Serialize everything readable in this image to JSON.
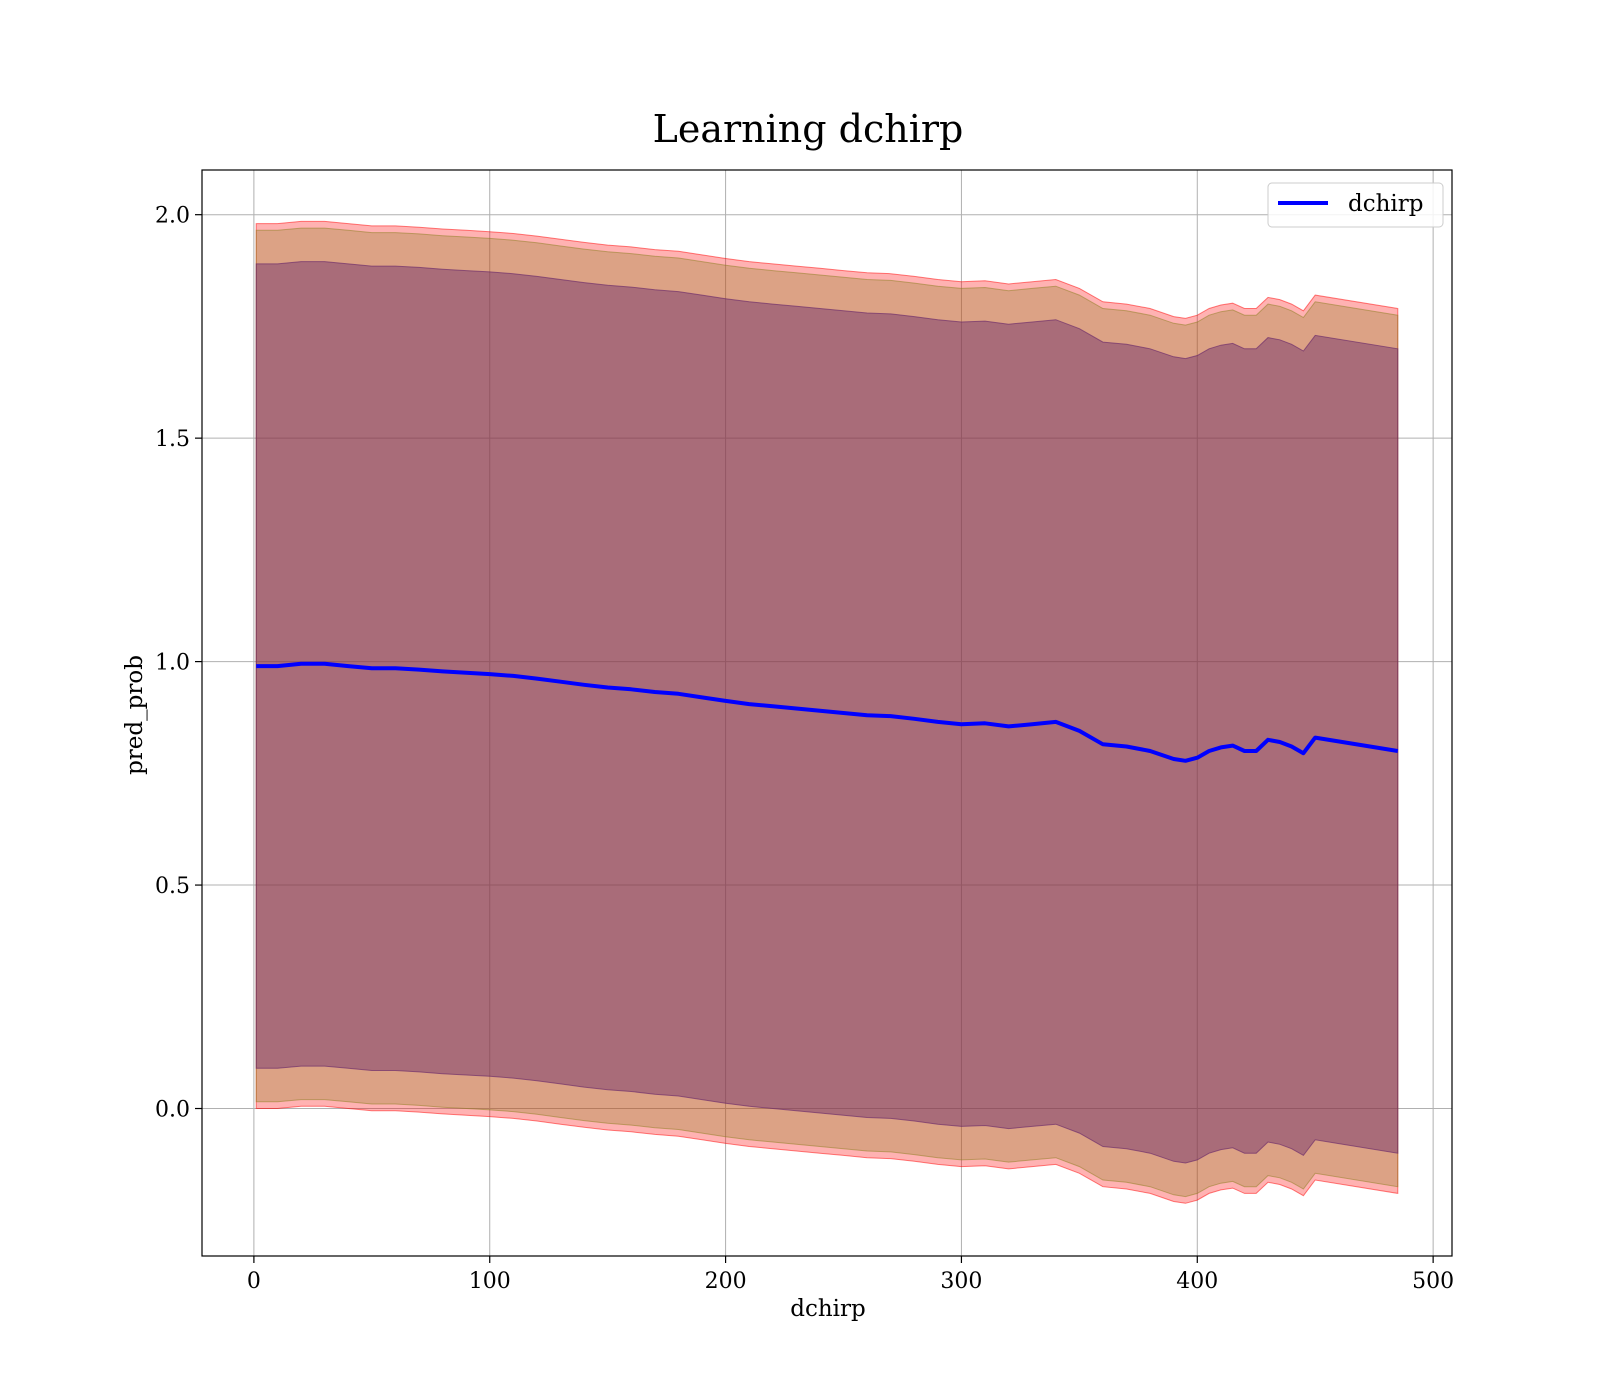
{
  "chart_data": {
    "type": "line",
    "title": "Learning dchirp",
    "xlabel": "dchirp",
    "ylabel": "pred_prob",
    "xlim": [
      -22,
      508
    ],
    "ylim": [
      -0.33,
      2.1
    ],
    "xticks": [
      0,
      100,
      200,
      300,
      400,
      500
    ],
    "yticks": [
      0.0,
      0.5,
      1.0,
      1.5,
      2.0
    ],
    "xtick_labels": [
      "0",
      "100",
      "200",
      "300",
      "400",
      "500"
    ],
    "ytick_labels": [
      "0.0",
      "0.5",
      "1.0",
      "1.5",
      "2.0"
    ],
    "grid": true,
    "legend_position": "top-right",
    "x": [
      1,
      10,
      20,
      30,
      40,
      50,
      60,
      70,
      80,
      90,
      100,
      110,
      120,
      130,
      140,
      150,
      160,
      170,
      180,
      190,
      200,
      210,
      220,
      230,
      240,
      250,
      260,
      270,
      280,
      290,
      300,
      310,
      320,
      330,
      340,
      350,
      360,
      370,
      380,
      390,
      395,
      400,
      405,
      410,
      415,
      420,
      425,
      430,
      435,
      440,
      445,
      450,
      485
    ],
    "series": [
      {
        "name": "dchirp",
        "color": "#0000ff",
        "values": [
          0.99,
          0.99,
          0.995,
          0.995,
          0.99,
          0.985,
          0.985,
          0.982,
          0.978,
          0.975,
          0.972,
          0.968,
          0.962,
          0.955,
          0.948,
          0.942,
          0.938,
          0.932,
          0.928,
          0.92,
          0.912,
          0.905,
          0.9,
          0.895,
          0.89,
          0.885,
          0.88,
          0.878,
          0.872,
          0.865,
          0.86,
          0.862,
          0.855,
          0.86,
          0.865,
          0.845,
          0.815,
          0.81,
          0.8,
          0.782,
          0.778,
          0.785,
          0.8,
          0.808,
          0.812,
          0.8,
          0.8,
          0.825,
          0.82,
          0.81,
          0.795,
          0.83,
          0.8
        ]
      }
    ],
    "bands": [
      {
        "fill": "#ff0000",
        "opacity": 0.3,
        "lower": [
          0.0,
          0.0,
          0.005,
          0.005,
          0.0,
          -0.005,
          -0.005,
          -0.008,
          -0.012,
          -0.015,
          -0.018,
          -0.022,
          -0.028,
          -0.035,
          -0.042,
          -0.048,
          -0.052,
          -0.058,
          -0.062,
          -0.07,
          -0.078,
          -0.085,
          -0.09,
          -0.095,
          -0.1,
          -0.105,
          -0.11,
          -0.112,
          -0.118,
          -0.125,
          -0.13,
          -0.128,
          -0.135,
          -0.13,
          -0.125,
          -0.145,
          -0.175,
          -0.18,
          -0.19,
          -0.208,
          -0.212,
          -0.205,
          -0.19,
          -0.182,
          -0.178,
          -0.19,
          -0.19,
          -0.165,
          -0.17,
          -0.18,
          -0.195,
          -0.16,
          -0.19
        ],
        "upper": [
          1.98,
          1.98,
          1.985,
          1.985,
          1.98,
          1.975,
          1.975,
          1.972,
          1.968,
          1.965,
          1.962,
          1.958,
          1.952,
          1.945,
          1.938,
          1.932,
          1.928,
          1.922,
          1.918,
          1.91,
          1.902,
          1.895,
          1.89,
          1.885,
          1.88,
          1.875,
          1.87,
          1.868,
          1.862,
          1.855,
          1.85,
          1.852,
          1.845,
          1.85,
          1.855,
          1.835,
          1.805,
          1.8,
          1.79,
          1.772,
          1.768,
          1.775,
          1.79,
          1.798,
          1.802,
          1.79,
          1.79,
          1.815,
          1.81,
          1.8,
          1.785,
          1.82,
          1.79
        ]
      },
      {
        "fill": "#8c7d1e",
        "opacity": 0.3,
        "lower": [
          0.015,
          0.015,
          0.02,
          0.02,
          0.015,
          0.01,
          0.01,
          0.007,
          0.003,
          0.0,
          -0.003,
          -0.007,
          -0.013,
          -0.02,
          -0.027,
          -0.033,
          -0.037,
          -0.043,
          -0.047,
          -0.055,
          -0.063,
          -0.07,
          -0.075,
          -0.08,
          -0.085,
          -0.09,
          -0.095,
          -0.097,
          -0.103,
          -0.11,
          -0.115,
          -0.113,
          -0.12,
          -0.115,
          -0.11,
          -0.13,
          -0.16,
          -0.165,
          -0.175,
          -0.193,
          -0.197,
          -0.19,
          -0.175,
          -0.167,
          -0.163,
          -0.175,
          -0.175,
          -0.15,
          -0.155,
          -0.165,
          -0.18,
          -0.145,
          -0.175
        ],
        "upper": [
          1.965,
          1.965,
          1.97,
          1.97,
          1.965,
          1.96,
          1.96,
          1.957,
          1.953,
          1.95,
          1.947,
          1.943,
          1.937,
          1.93,
          1.923,
          1.917,
          1.913,
          1.907,
          1.903,
          1.895,
          1.887,
          1.88,
          1.875,
          1.87,
          1.865,
          1.86,
          1.855,
          1.853,
          1.847,
          1.84,
          1.835,
          1.837,
          1.83,
          1.835,
          1.84,
          1.82,
          1.79,
          1.785,
          1.775,
          1.757,
          1.753,
          1.76,
          1.775,
          1.783,
          1.787,
          1.775,
          1.775,
          1.8,
          1.795,
          1.785,
          1.77,
          1.805,
          1.775
        ]
      },
      {
        "fill": "#6a2a6a",
        "opacity": 0.45,
        "lower": [
          0.09,
          0.09,
          0.095,
          0.095,
          0.09,
          0.085,
          0.085,
          0.082,
          0.078,
          0.075,
          0.072,
          0.068,
          0.062,
          0.055,
          0.048,
          0.042,
          0.038,
          0.032,
          0.028,
          0.02,
          0.012,
          0.005,
          0.0,
          -0.005,
          -0.01,
          -0.015,
          -0.02,
          -0.022,
          -0.028,
          -0.035,
          -0.04,
          -0.038,
          -0.045,
          -0.04,
          -0.035,
          -0.055,
          -0.085,
          -0.09,
          -0.1,
          -0.118,
          -0.122,
          -0.115,
          -0.1,
          -0.092,
          -0.088,
          -0.1,
          -0.1,
          -0.075,
          -0.08,
          -0.09,
          -0.105,
          -0.07,
          -0.1
        ],
        "upper": [
          1.89,
          1.89,
          1.895,
          1.895,
          1.89,
          1.885,
          1.885,
          1.882,
          1.878,
          1.875,
          1.872,
          1.868,
          1.862,
          1.855,
          1.848,
          1.842,
          1.838,
          1.832,
          1.828,
          1.82,
          1.812,
          1.805,
          1.8,
          1.795,
          1.79,
          1.785,
          1.78,
          1.778,
          1.772,
          1.765,
          1.76,
          1.762,
          1.755,
          1.76,
          1.765,
          1.745,
          1.715,
          1.71,
          1.7,
          1.682,
          1.678,
          1.685,
          1.7,
          1.708,
          1.712,
          1.7,
          1.7,
          1.725,
          1.72,
          1.71,
          1.695,
          1.73,
          1.7
        ]
      }
    ]
  }
}
